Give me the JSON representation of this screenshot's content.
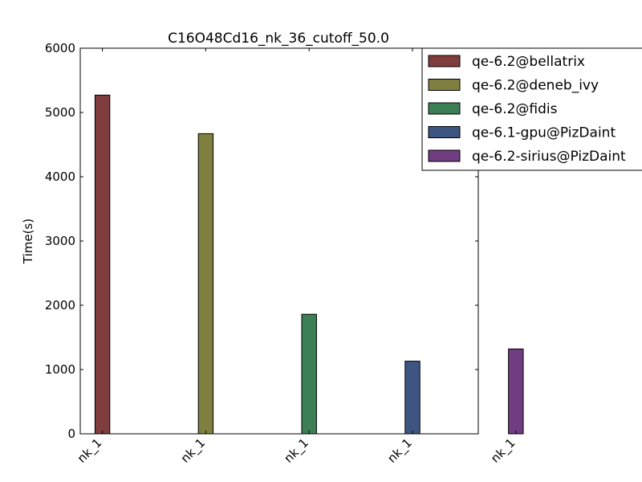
{
  "chart_data": {
    "type": "bar",
    "title": "C16O48Cd16_nk_36_cutoff_50.0",
    "xlabel": "",
    "ylabel": "Time(s)",
    "ylim": [
      0,
      6000
    ],
    "yticks": [
      0,
      1000,
      2000,
      3000,
      4000,
      5000,
      6000
    ],
    "categories": [
      "nk_1",
      "nk_1",
      "nk_1",
      "nk_1",
      "nk_1"
    ],
    "grid": false,
    "legend_position": "top-right",
    "series": [
      {
        "name": "qe-6.2@bellatrix",
        "color": "#7f3d3d",
        "values": [
          5270,
          null,
          null,
          null,
          null
        ]
      },
      {
        "name": "qe-6.2@deneb_ivy",
        "color": "#7f8040",
        "values": [
          null,
          4670,
          null,
          null,
          null
        ]
      },
      {
        "name": "qe-6.2@fidis",
        "color": "#3d7f55",
        "values": [
          null,
          null,
          1860,
          null,
          null
        ]
      },
      {
        "name": "qe-6.1-gpu@PizDaint",
        "color": "#3d5580",
        "values": [
          null,
          null,
          null,
          1130,
          null
        ]
      },
      {
        "name": "qe-6.2-sirius@PizDaint",
        "color": "#703d80",
        "values": [
          null,
          null,
          null,
          null,
          1320
        ]
      }
    ]
  }
}
